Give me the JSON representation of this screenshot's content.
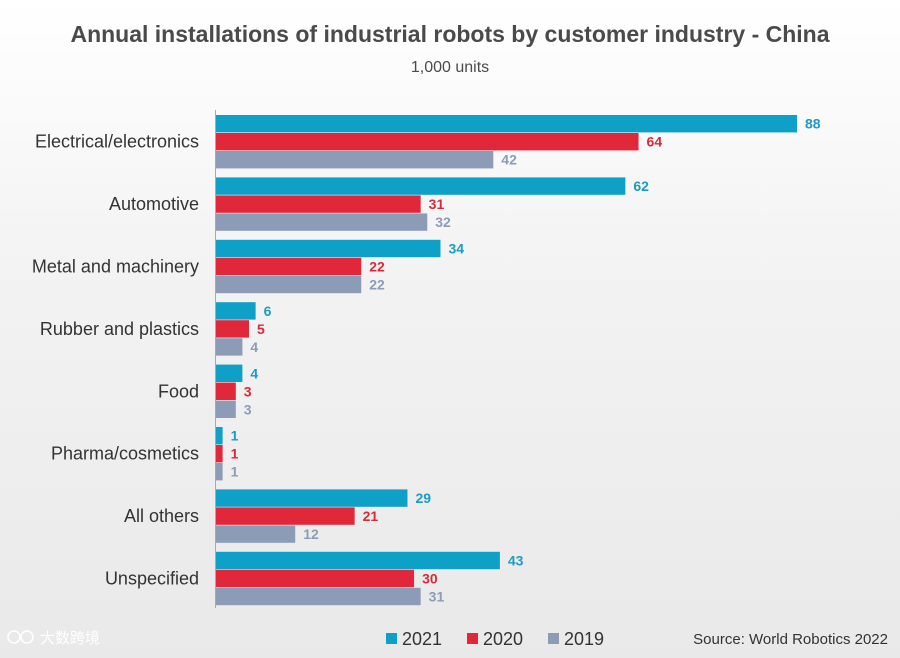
{
  "chart_data": {
    "type": "bar",
    "orientation": "horizontal",
    "title": "Annual installations of industrial robots by customer industry - China",
    "subtitle": "1,000 units",
    "categories": [
      "Electrical/electronics",
      "Automotive",
      "Metal and machinery",
      "Rubber and plastics",
      "Food",
      "Pharma/cosmetics",
      "All others",
      "Unspecified"
    ],
    "series": [
      {
        "name": "2021",
        "color": "#0fa0c8",
        "label_color": "#1a9cc4",
        "values": [
          88,
          62,
          34,
          6,
          4,
          1,
          29,
          43
        ]
      },
      {
        "name": "2020",
        "color": "#e0283a",
        "label_color": "#d82a3a",
        "values": [
          64,
          31,
          22,
          5,
          3,
          1,
          21,
          30
        ]
      },
      {
        "name": "2019",
        "color": "#8d9cb6",
        "label_color": "#8d9cb6",
        "values": [
          42,
          32,
          22,
          4,
          3,
          1,
          12,
          31
        ]
      }
    ],
    "xlim": [
      0,
      88
    ],
    "grid": false,
    "legend": "bottom",
    "source": "Source: World Robotics 2022"
  },
  "watermark": "大数跨境"
}
